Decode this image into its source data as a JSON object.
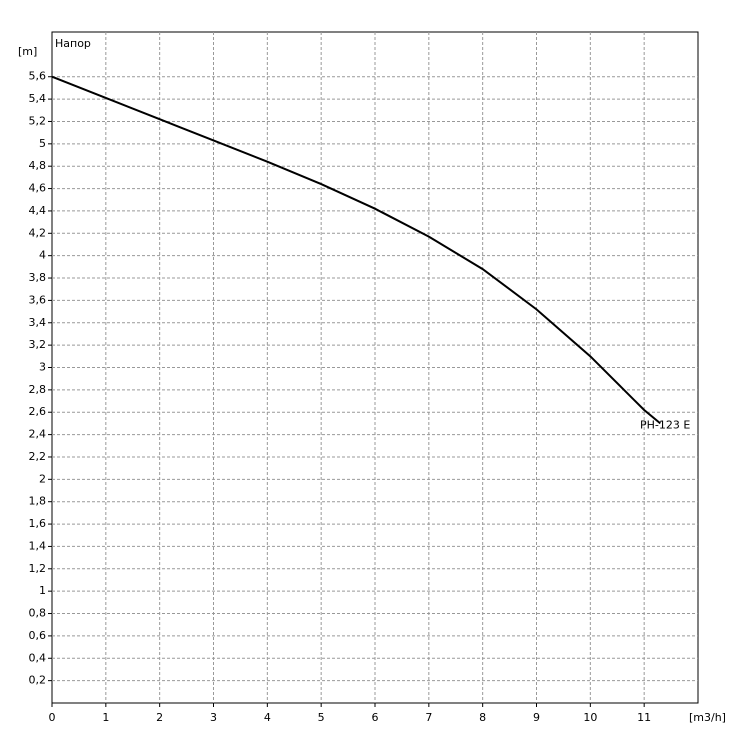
{
  "chart_data": {
    "type": "line",
    "title": "Напор",
    "y_label": "[m]",
    "x_label": "[m3/h]",
    "x": [
      0,
      1,
      2,
      3,
      4,
      5,
      6,
      7,
      8,
      9,
      10,
      11,
      11.3
    ],
    "series": [
      {
        "name": "PH-123 E",
        "color": "#000000",
        "values": [
          5.6,
          5.41,
          5.22,
          5.03,
          4.84,
          4.64,
          4.42,
          4.17,
          3.88,
          3.52,
          3.1,
          2.62,
          2.5
        ]
      }
    ],
    "xlim": [
      0,
      12
    ],
    "ylim": [
      0,
      6
    ],
    "xticks": [
      0,
      1,
      2,
      3,
      4,
      5,
      6,
      7,
      8,
      9,
      10,
      11
    ],
    "yticks": [
      {
        "value": 0.2,
        "label": "0,2"
      },
      {
        "value": 0.4,
        "label": "0,4"
      },
      {
        "value": 0.6,
        "label": "0,6"
      },
      {
        "value": 0.8,
        "label": "0,8"
      },
      1,
      {
        "value": 1.2,
        "label": "1,2"
      },
      {
        "value": 1.4,
        "label": "1,4"
      },
      {
        "value": 1.6,
        "label": "1,6"
      },
      {
        "value": 1.8,
        "label": "1,8"
      },
      2,
      {
        "value": 2.2,
        "label": "2,2"
      },
      {
        "value": 2.4,
        "label": "2,4"
      },
      {
        "value": 2.6,
        "label": "2,6"
      },
      {
        "value": 2.8,
        "label": "2,8"
      },
      3,
      {
        "value": 3.2,
        "label": "3,2"
      },
      {
        "value": 3.4,
        "label": "3,4"
      },
      {
        "value": 3.6,
        "label": "3,6"
      },
      {
        "value": 3.8,
        "label": "3,8"
      },
      4,
      {
        "value": 4.2,
        "label": "4,2"
      },
      {
        "value": 4.4,
        "label": "4,4"
      },
      {
        "value": 4.6,
        "label": "4,6"
      },
      {
        "value": 4.8,
        "label": "4,8"
      },
      5,
      {
        "value": 5.2,
        "label": "5,2"
      },
      {
        "value": 5.4,
        "label": "5,4"
      },
      {
        "value": 5.6,
        "label": "5,6"
      }
    ],
    "grid": true
  }
}
